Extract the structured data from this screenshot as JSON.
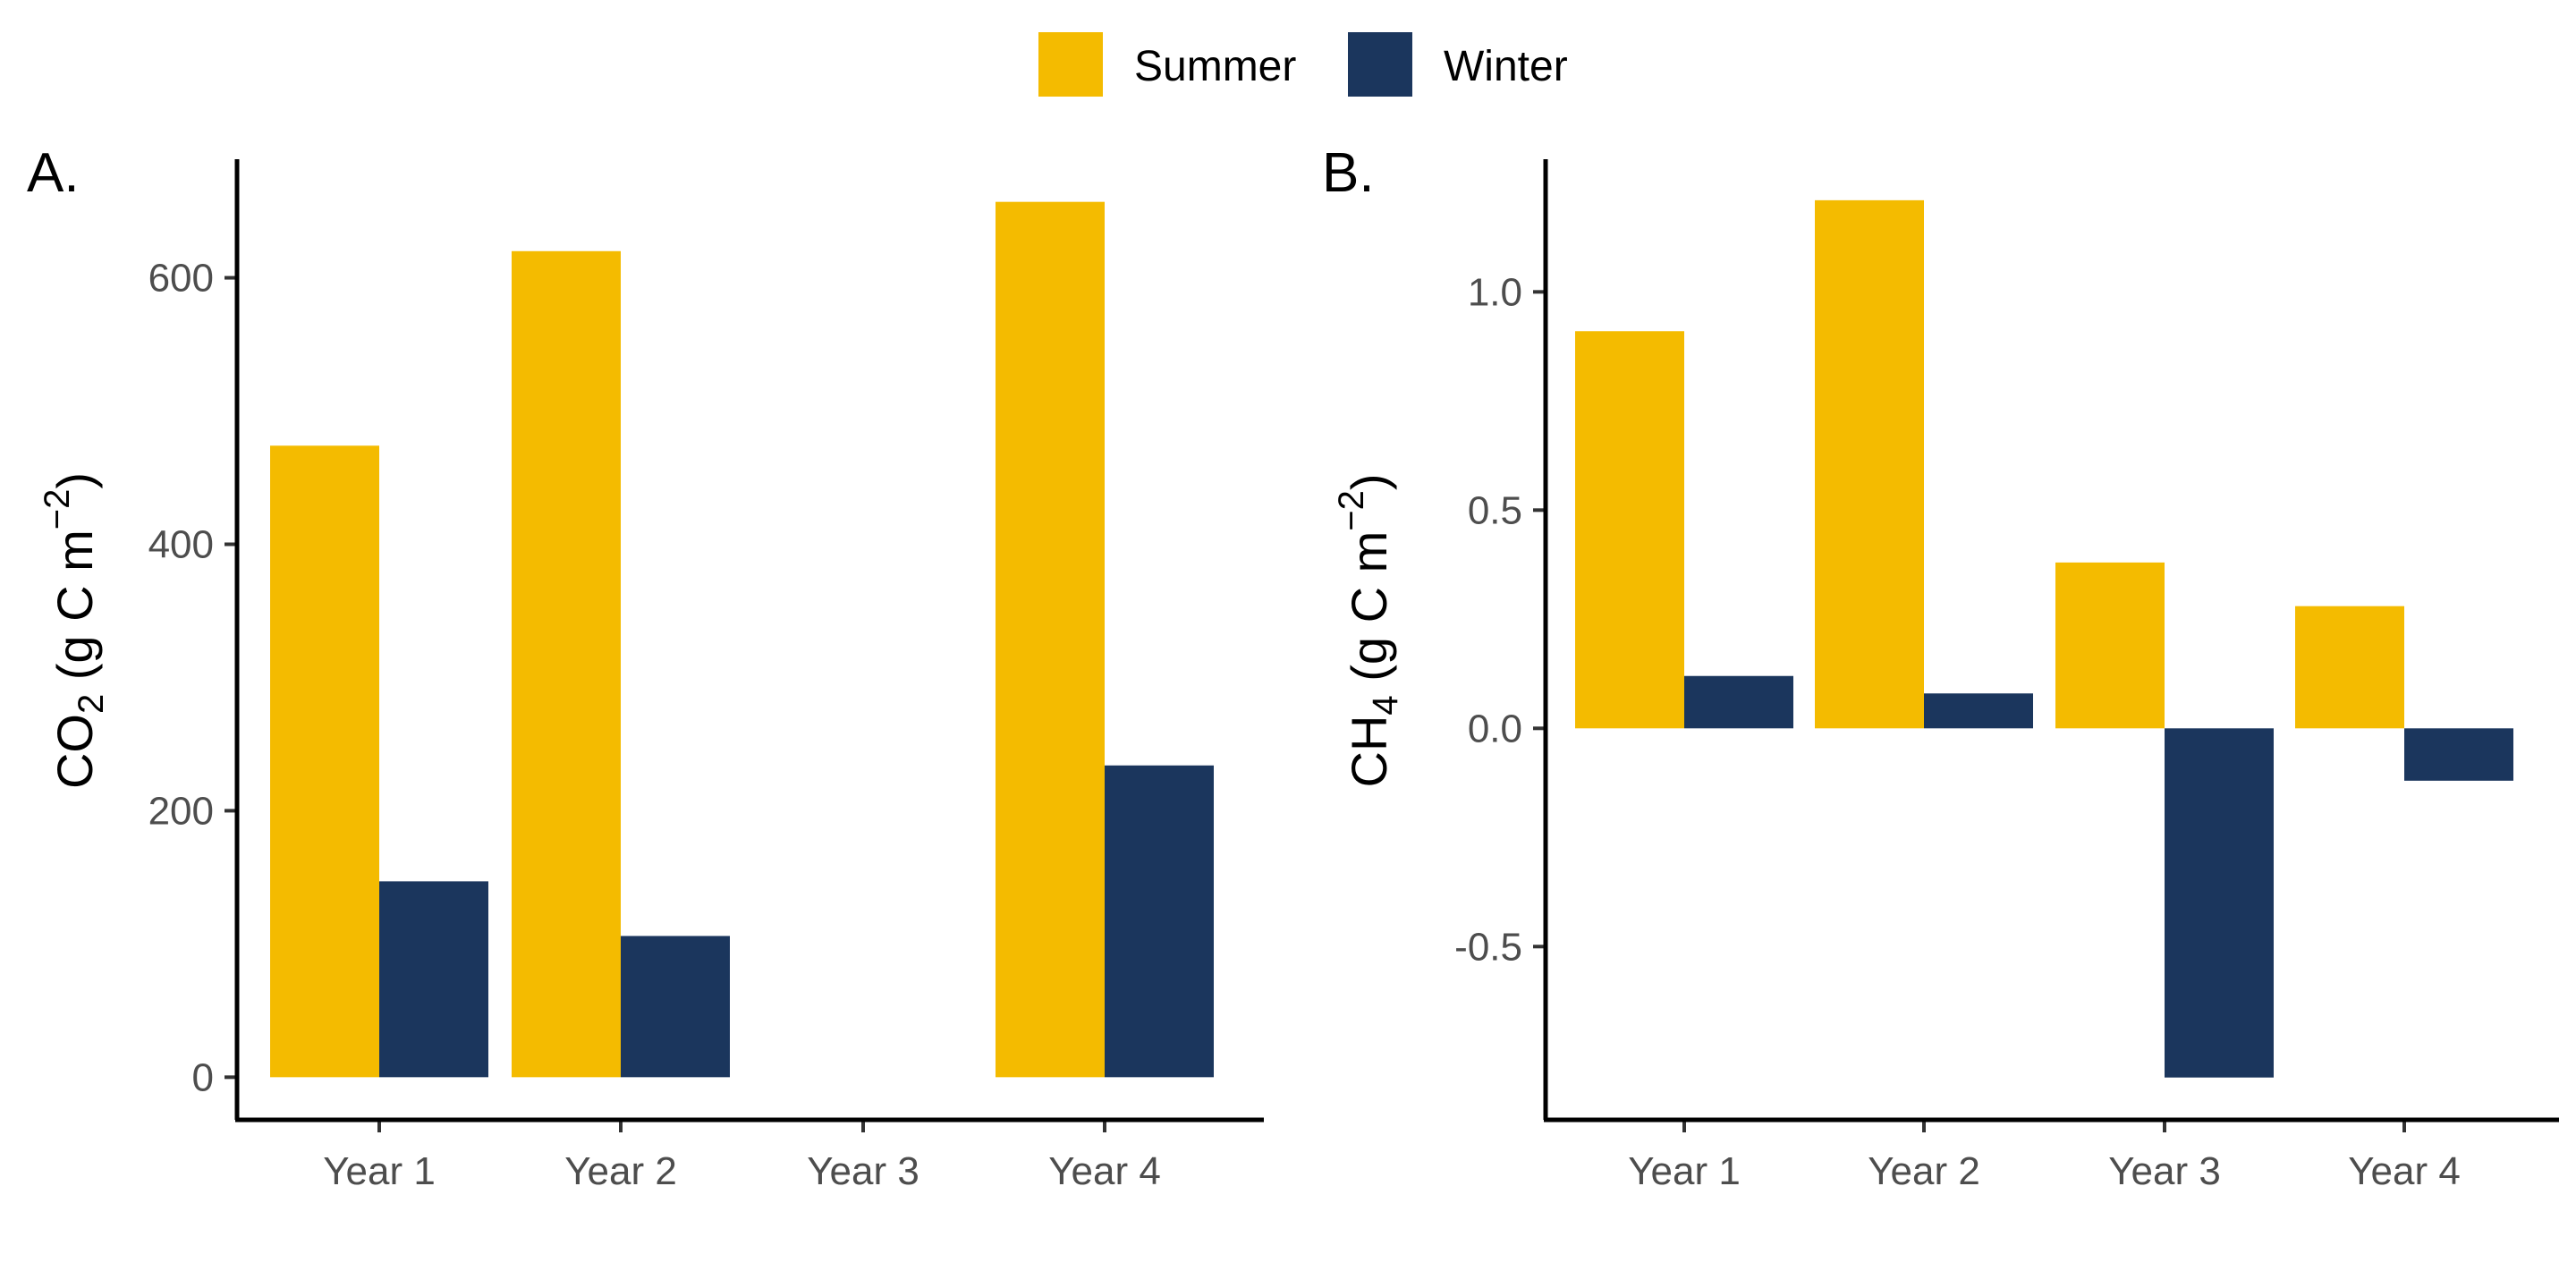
{
  "legend": {
    "items": [
      {
        "label": "Summer",
        "color": "#F4BB00"
      },
      {
        "label": "Winter",
        "color": "#1B365D"
      }
    ]
  },
  "chart_data": [
    {
      "type": "bar",
      "panel_tag": "A.",
      "ylabel": {
        "main": "CO",
        "sub": "2",
        "rest": " (g C m",
        "sup": "−2",
        "close": ")"
      },
      "categories": [
        "Year 1",
        "Year 2",
        "Year 3",
        "Year 4"
      ],
      "series": [
        {
          "name": "Summer",
          "color": "#F4BB00",
          "values": [
            474,
            620,
            null,
            657
          ]
        },
        {
          "name": "Winter",
          "color": "#1B365D",
          "values": [
            147,
            106,
            null,
            234
          ]
        }
      ],
      "yticks": [
        0,
        200,
        400,
        600
      ],
      "ytick_labels": [
        "0",
        "200",
        "400",
        "600"
      ],
      "ylim": [
        -32,
        689
      ],
      "grid": false,
      "legend_position": "top"
    },
    {
      "type": "bar",
      "panel_tag": "B.",
      "ylabel": {
        "main": "CH",
        "sub": "4",
        "rest": " (g C m",
        "sup": "−2",
        "close": ")"
      },
      "categories": [
        "Year 1",
        "Year 2",
        "Year 3",
        "Year 4"
      ],
      "series": [
        {
          "name": "Summer",
          "color": "#F4BB00",
          "values": [
            0.91,
            1.21,
            0.38,
            0.28
          ]
        },
        {
          "name": "Winter",
          "color": "#1B365D",
          "values": [
            0.12,
            0.08,
            -0.8,
            -0.12
          ]
        }
      ],
      "yticks": [
        -0.5,
        0.0,
        0.5,
        1.0
      ],
      "ytick_labels": [
        "-0.5",
        "0.0",
        "0.5",
        "1.0"
      ],
      "ylim": [
        -0.897,
        1.304
      ],
      "grid": false,
      "legend_position": "top"
    }
  ]
}
